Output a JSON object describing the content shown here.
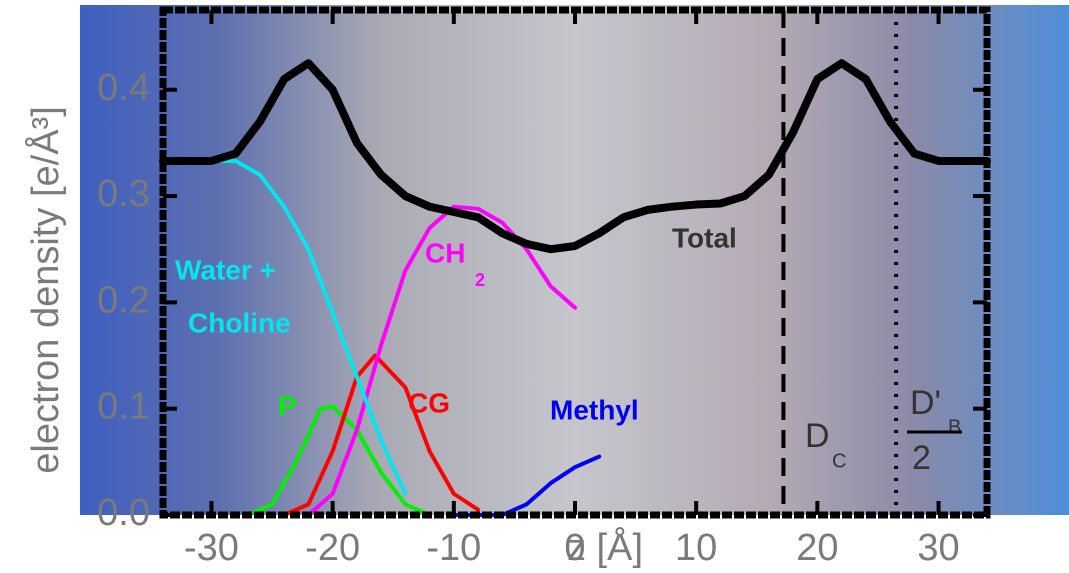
{
  "chart_data": {
    "type": "line",
    "xlabel": "z  [Å]",
    "ylabel": "electron density  [e/Å³]",
    "xlim": [
      -34,
      34
    ],
    "ylim": [
      0,
      0.475
    ],
    "xticks": [
      -30,
      -20,
      -10,
      0,
      10,
      20,
      30
    ],
    "yticks": [
      {
        "value": 0,
        "label": "0.0"
      },
      {
        "value": 0.1,
        "label": "0.1"
      },
      {
        "value": 0.2,
        "label": "0.2"
      },
      {
        "value": 0.3,
        "label": "0.3"
      },
      {
        "value": 0.4,
        "label": "0.4"
      }
    ],
    "series": [
      {
        "name": "Total",
        "color": "#000000",
        "x": [
          -34,
          -30,
          -28,
          -26,
          -24,
          -22,
          -20,
          -18,
          -16,
          -14,
          -12,
          -10,
          -8,
          -6,
          -4,
          -2,
          0,
          2,
          4,
          6,
          8,
          10,
          12,
          14,
          16,
          18,
          20,
          22,
          24,
          26,
          28,
          30,
          34
        ],
        "values": [
          0.333,
          0.333,
          0.34,
          0.37,
          0.41,
          0.425,
          0.4,
          0.35,
          0.32,
          0.3,
          0.29,
          0.285,
          0.28,
          0.265,
          0.255,
          0.25,
          0.253,
          0.265,
          0.28,
          0.287,
          0.29,
          0.292,
          0.293,
          0.3,
          0.32,
          0.36,
          0.41,
          0.425,
          0.41,
          0.37,
          0.34,
          0.333,
          0.333
        ]
      },
      {
        "name_lines": [
          "Water +",
          "Choline"
        ],
        "color": "#00e5ee",
        "x": [
          -34,
          -28,
          -26,
          -24,
          -22,
          -20,
          -18,
          -16,
          -14
        ],
        "values": [
          0.333,
          0.333,
          0.32,
          0.29,
          0.25,
          0.19,
          0.13,
          0.07,
          0.02
        ]
      },
      {
        "name": "CH",
        "name_subscript": "2",
        "color": "#ff00ff",
        "x": [
          -22,
          -20,
          -18,
          -16,
          -14,
          -12,
          -10,
          -8,
          -6,
          -4,
          -2,
          0
        ],
        "values": [
          0,
          0.02,
          0.08,
          0.16,
          0.23,
          0.27,
          0.29,
          0.288,
          0.275,
          0.25,
          0.215,
          0.195
        ]
      },
      {
        "name": "CG",
        "color": "#ff0000",
        "x": [
          -24,
          -22,
          -20,
          -18,
          -16.5,
          -14,
          -12,
          -10,
          -8
        ],
        "values": [
          0,
          0.01,
          0.06,
          0.13,
          0.15,
          0.12,
          0.06,
          0.02,
          0.005
        ]
      },
      {
        "name": "P",
        "color": "#00ee00",
        "x": [
          -27,
          -25,
          -23,
          -21,
          -20,
          -18,
          -16,
          -14,
          -12
        ],
        "values": [
          0,
          0.01,
          0.05,
          0.1,
          0.102,
          0.08,
          0.04,
          0.01,
          0
        ]
      },
      {
        "name": "Methyl",
        "color": "#0000ee",
        "x": [
          -10,
          -6,
          -4,
          -2,
          0,
          2
        ],
        "values": [
          0,
          0,
          0.01,
          0.03,
          0.045,
          0.055
        ]
      }
    ],
    "markers": [
      {
        "x": 17.2,
        "style": "dashed",
        "text": "D",
        "subscript": "C"
      },
      {
        "x": 26.5,
        "style": "dotted",
        "text": "D'",
        "subscript": "B",
        "denominator": "2"
      }
    ]
  }
}
